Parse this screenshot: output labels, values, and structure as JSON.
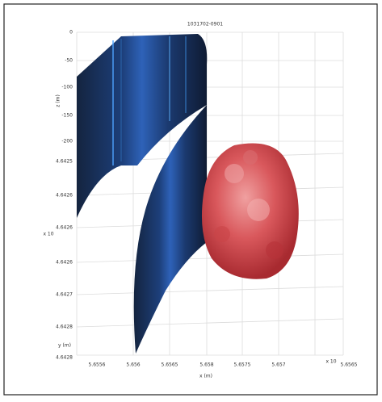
{
  "header": {
    "title": "1031702-0901"
  },
  "axes": {
    "z_label": "z (m)",
    "y_label": "y (m)",
    "x_label": "x (m)",
    "y_exponent": "x 10",
    "x_exponent": "x 10",
    "z_ticks": [
      "0",
      "-50",
      "-100",
      "-150",
      "-200"
    ],
    "y_ticks": [
      "4.6425",
      "4.6426",
      "4.6426",
      "4.6426",
      "4.6427",
      "4.6428",
      "4.6428"
    ],
    "x_ticks": [
      "5.6556",
      "5.656",
      "5.6565",
      "5.658",
      "5.6575",
      "5.657",
      "5.6565"
    ]
  }
}
